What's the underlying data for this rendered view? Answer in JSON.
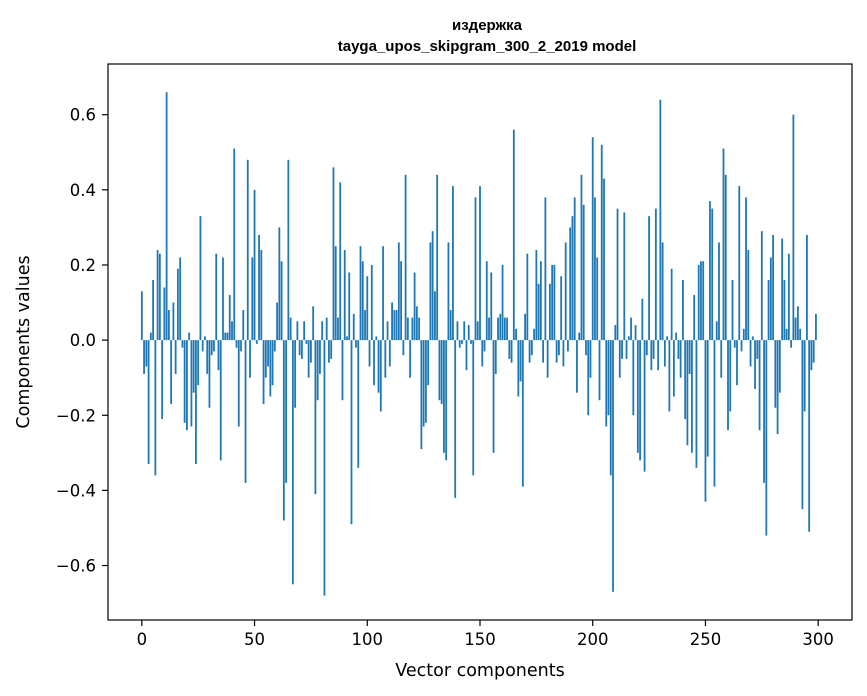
{
  "chart_data": {
    "type": "bar",
    "title": "издержка",
    "subtitle": "tayga_upos_skipgram_300_2_2019 model",
    "xlabel": "Vector components",
    "ylabel": "Components values",
    "xlim": [
      -15,
      315
    ],
    "ylim": [
      -0.745,
      0.735
    ],
    "xticks": [
      0,
      50,
      100,
      150,
      200,
      250,
      300
    ],
    "xtick_labels": [
      "0",
      "50",
      "100",
      "150",
      "200",
      "250",
      "300"
    ],
    "yticks": [
      -0.6,
      -0.4,
      -0.2,
      0.0,
      0.2,
      0.4,
      0.6
    ],
    "ytick_labels": [
      "−0.6",
      "−0.4",
      "−0.2",
      "0.0",
      "0.2",
      "0.4",
      "0.6"
    ],
    "grid": false,
    "bar_color": "#1f77b4",
    "values": [
      0.13,
      -0.09,
      -0.07,
      -0.33,
      0.02,
      0.16,
      -0.36,
      0.24,
      0.23,
      -0.21,
      0.14,
      0.66,
      0.08,
      -0.17,
      0.1,
      -0.09,
      0.19,
      0.22,
      -0.02,
      -0.22,
      -0.24,
      0.02,
      -0.23,
      -0.14,
      -0.33,
      -0.12,
      0.33,
      -0.03,
      0.01,
      -0.09,
      -0.18,
      -0.04,
      -0.03,
      0.23,
      -0.08,
      -0.32,
      0.22,
      0.02,
      0.02,
      0.12,
      0.05,
      0.51,
      -0.02,
      -0.23,
      -0.03,
      0.08,
      -0.38,
      0.48,
      -0.1,
      0.22,
      0.4,
      -0.01,
      0.28,
      0.24,
      -0.17,
      -0.1,
      -0.07,
      -0.15,
      -0.12,
      -0.03,
      0.1,
      0.3,
      0.21,
      -0.48,
      -0.38,
      0.48,
      0.06,
      -0.65,
      -0.18,
      0.05,
      -0.04,
      -0.05,
      0.05,
      -0.01,
      -0.1,
      -0.06,
      0.09,
      -0.41,
      -0.16,
      -0.09,
      0.05,
      -0.68,
      0.06,
      -0.06,
      -0.05,
      0.46,
      0.25,
      0.06,
      0.42,
      -0.16,
      0.24,
      0.01,
      0.18,
      -0.49,
      0.07,
      -0.02,
      -0.34,
      0.25,
      0.21,
      0.08,
      0.17,
      -0.07,
      0.2,
      -0.12,
      0.01,
      -0.14,
      -0.19,
      0.25,
      -0.1,
      0.05,
      -0.07,
      0.1,
      0.08,
      0.08,
      0.26,
      0.21,
      -0.04,
      0.44,
      0.06,
      -0.1,
      0.06,
      0.18,
      0.09,
      0.06,
      -0.29,
      -0.23,
      -0.22,
      -0.12,
      0.26,
      0.29,
      0.13,
      0.44,
      -0.16,
      -0.17,
      -0.3,
      -0.32,
      0.26,
      0.08,
      0.41,
      -0.42,
      0.05,
      -0.02,
      -0.01,
      0.05,
      -0.08,
      0.04,
      -0.01,
      -0.36,
      0.38,
      0.05,
      0.41,
      -0.07,
      -0.03,
      0.21,
      0.06,
      0.18,
      -0.3,
      -0.09,
      0.06,
      0.07,
      0.2,
      0.06,
      0.06,
      -0.05,
      -0.06,
      0.56,
      0.03,
      -0.15,
      -0.11,
      -0.39,
      0.07,
      0.23,
      -0.06,
      -0.04,
      0.03,
      0.24,
      0.15,
      0.21,
      -0.06,
      0.38,
      -0.1,
      0.15,
      0.2,
      0.2,
      -0.06,
      -0.04,
      0.17,
      -0.07,
      0.26,
      -0.03,
      0.3,
      0.33,
      0.38,
      -0.14,
      0.02,
      0.44,
      0.36,
      -0.04,
      -0.2,
      -0.1,
      0.54,
      0.38,
      0.22,
      -0.16,
      0.52,
      0.43,
      -0.23,
      -0.2,
      -0.36,
      -0.67,
      0.04,
      0.35,
      -0.1,
      -0.05,
      0.34,
      -0.05,
      0.01,
      0.06,
      -0.2,
      0.04,
      -0.3,
      -0.32,
      0.11,
      -0.35,
      -0.04,
      0.33,
      -0.08,
      -0.05,
      0.35,
      -0.08,
      0.64,
      0.26,
      -0.07,
      0.01,
      -0.19,
      0.19,
      -0.15,
      0.02,
      -0.05,
      -0.1,
      0.16,
      -0.21,
      -0.28,
      -0.09,
      -0.3,
      0.12,
      -0.34,
      0.2,
      0.21,
      0.21,
      -0.43,
      -0.31,
      0.37,
      0.35,
      -0.39,
      0.05,
      0.26,
      -0.1,
      0.51,
      0.44,
      -0.24,
      -0.19,
      0.16,
      -0.02,
      -0.12,
      0.41,
      -0.03,
      0.03,
      0.38,
      0.24,
      -0.07,
      0.01,
      -0.13,
      -0.05,
      -0.24,
      0.29,
      -0.38,
      -0.52,
      0.16,
      0.22,
      0.28,
      -0.18,
      -0.25,
      -0.14,
      0.27,
      0.16,
      0.03,
      0.23,
      -0.02,
      0.6,
      0.06,
      0.09,
      0.03,
      -0.45,
      -0.19,
      0.28,
      -0.51,
      -0.08,
      -0.06,
      0.07
    ]
  }
}
